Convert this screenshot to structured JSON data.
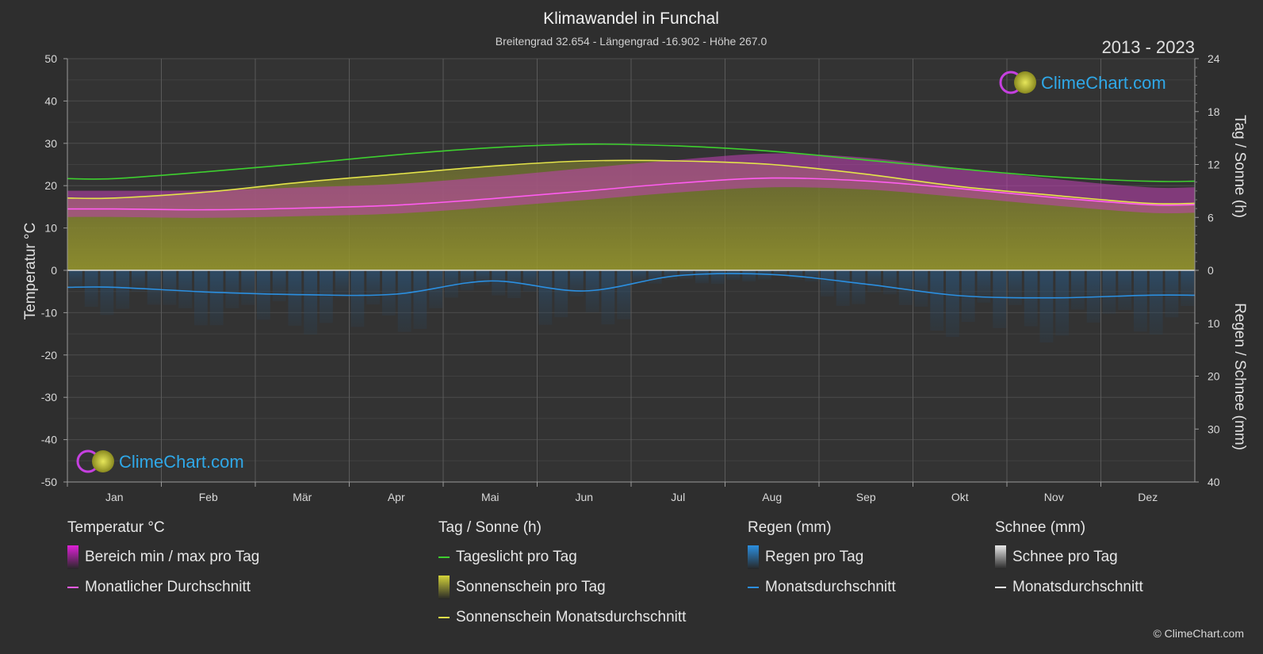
{
  "chart_data": {
    "type": "area",
    "title": "Klimawandel in Funchal",
    "subtitle": "Breitengrad 32.654 - Längengrad -16.902 - Höhe 267.0",
    "period": "2013 - 2023",
    "watermark": "ClimeChart.com",
    "y_left": {
      "label": "Temperatur °C",
      "range": [
        -50,
        50
      ],
      "ticks": [
        50,
        40,
        30,
        20,
        10,
        0,
        -10,
        -20,
        -30,
        -40,
        -50
      ]
    },
    "y_right_top": {
      "label": "Tag / Sonne (h)",
      "range": [
        0,
        24
      ],
      "ticks": [
        24,
        18,
        12,
        6,
        0
      ]
    },
    "y_right_bottom": {
      "label": "Regen / Schnee (mm)",
      "range": [
        0,
        40
      ],
      "ticks": [
        0,
        10,
        20,
        30,
        40
      ]
    },
    "months": [
      "Jan",
      "Feb",
      "Mär",
      "Apr",
      "Mai",
      "Jun",
      "Jul",
      "Aug",
      "Sep",
      "Okt",
      "Nov",
      "Dez"
    ],
    "series": [
      {
        "name": "Tageslicht pro Tag",
        "unit": "h",
        "color": "#3ecf2f",
        "values": [
          10.4,
          11.2,
          12.1,
          13.1,
          13.9,
          14.3,
          14.1,
          13.5,
          12.5,
          11.5,
          10.6,
          10.1
        ]
      },
      {
        "name": "Sonnenschein Monatsdurchschnitt",
        "unit": "h",
        "color": "#e3e34a",
        "values": [
          8.2,
          8.9,
          10.0,
          10.9,
          11.8,
          12.4,
          12.4,
          12.0,
          10.9,
          9.5,
          8.5,
          7.6
        ]
      },
      {
        "name": "Monatlicher Durchschnitt",
        "unit": "°C",
        "color": "#ff5cf0",
        "values": [
          14.5,
          14.3,
          14.7,
          15.4,
          16.9,
          18.7,
          20.6,
          21.8,
          21.1,
          19.3,
          17.2,
          15.5
        ]
      },
      {
        "name": "Bereich min / max pro Tag (max)",
        "unit": "°C",
        "color": "#d44fc3",
        "values": [
          18.8,
          18.9,
          19.6,
          20.4,
          22.1,
          24.1,
          26.1,
          27.6,
          26.6,
          24.1,
          21.6,
          19.6
        ]
      },
      {
        "name": "Bereich min / max pro Tag (min)",
        "unit": "°C",
        "color": "#d44fc3",
        "values": [
          12.6,
          12.4,
          12.8,
          13.4,
          14.9,
          16.6,
          18.4,
          19.6,
          19.1,
          17.3,
          15.3,
          13.6
        ]
      },
      {
        "name": "Regen Monatsdurchschnitt",
        "unit": "mm",
        "color": "#2b8fe0",
        "values": [
          3.2,
          4.1,
          4.6,
          4.5,
          2.0,
          3.9,
          1.0,
          0.8,
          2.6,
          4.8,
          5.2,
          4.7
        ]
      },
      {
        "name": "Schnee Monatsdurchschnitt",
        "unit": "mm",
        "color": "#ffffff",
        "values": [
          0,
          0,
          0,
          0,
          0,
          0,
          0,
          0,
          0,
          0,
          0,
          0
        ]
      }
    ],
    "grid": true
  },
  "legend": {
    "groups": [
      {
        "title": "Temperatur °C",
        "items": [
          {
            "label": "Bereich min / max pro Tag",
            "kind": "box",
            "color": "#e020d8"
          },
          {
            "label": "Monatlicher Durchschnitt",
            "kind": "line",
            "color": "#ff5cf0"
          }
        ]
      },
      {
        "title": "Tag / Sonne (h)",
        "items": [
          {
            "label": "Tageslicht pro Tag",
            "kind": "line",
            "color": "#3ecf2f"
          },
          {
            "label": "Sonnenschein pro Tag",
            "kind": "box",
            "color": "#d4d43a"
          },
          {
            "label": "Sonnenschein Monatsdurchschnitt",
            "kind": "line",
            "color": "#e3e34a"
          }
        ]
      },
      {
        "title": "Regen (mm)",
        "items": [
          {
            "label": "Regen pro Tag",
            "kind": "box",
            "color": "#2b8fe0"
          },
          {
            "label": "Monatsdurchschnitt",
            "kind": "line",
            "color": "#2b8fe0"
          }
        ]
      },
      {
        "title": "Schnee (mm)",
        "items": [
          {
            "label": "Schnee pro Tag",
            "kind": "box",
            "color": "#e8e8e8"
          },
          {
            "label": "Monatsdurchschnitt",
            "kind": "line",
            "color": "#ffffff"
          }
        ]
      }
    ]
  },
  "copyright": "© ClimeChart.com"
}
